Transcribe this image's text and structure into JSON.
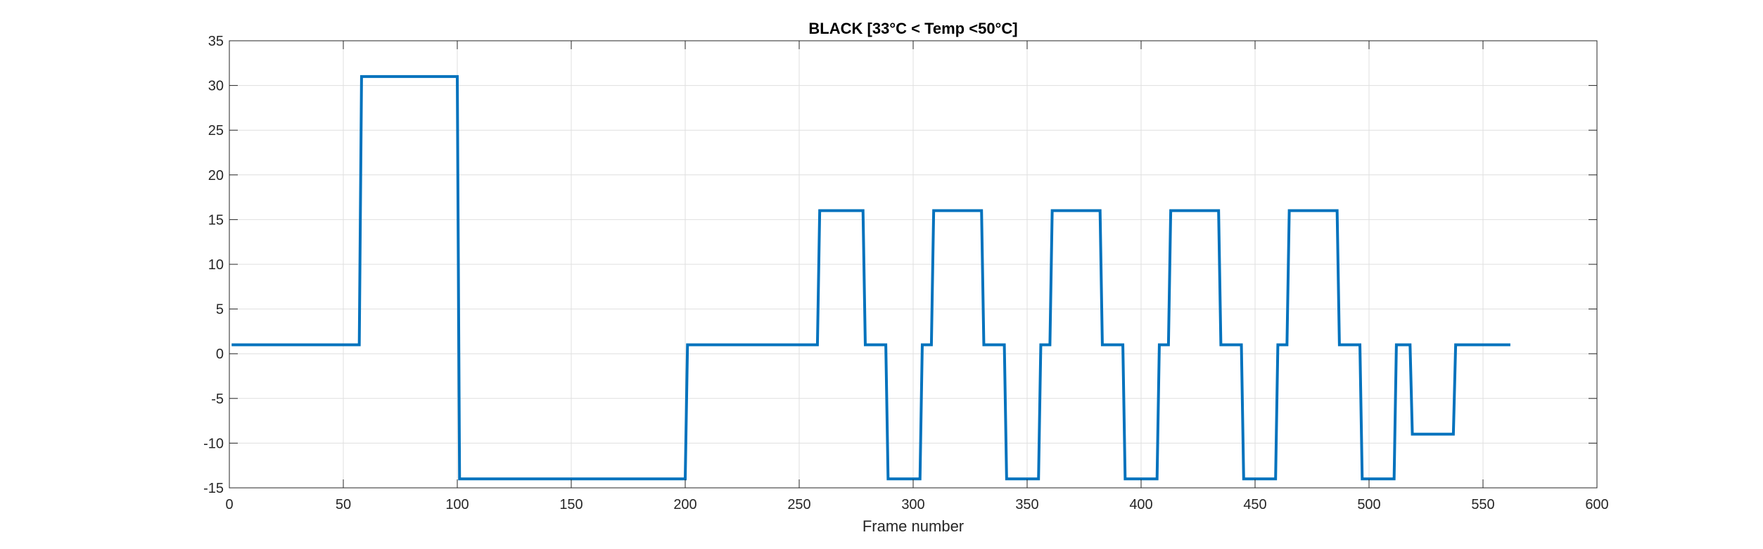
{
  "chart_data": {
    "type": "line",
    "title": "BLACK [33°C < Temp <50°C]",
    "xlabel": "Frame number",
    "ylabel": "",
    "xlim": [
      0,
      600
    ],
    "ylim": [
      -15,
      35
    ],
    "xticks": [
      0,
      50,
      100,
      150,
      200,
      250,
      300,
      350,
      400,
      450,
      500,
      550,
      600
    ],
    "yticks": [
      -15,
      -10,
      -5,
      0,
      5,
      10,
      15,
      20,
      25,
      30,
      35
    ],
    "grid": true,
    "line_color": "#0072BD",
    "series": [
      {
        "x": [
          1,
          57,
          58,
          100,
          101,
          200,
          201,
          258,
          259,
          278,
          279,
          288,
          289,
          303,
          304,
          308,
          309,
          330,
          331,
          340,
          341,
          355,
          356,
          360,
          361,
          382,
          383,
          392,
          393,
          407,
          408,
          412,
          413,
          434,
          435,
          444,
          445,
          459,
          460,
          464,
          465,
          486,
          487,
          496,
          497,
          511,
          512,
          518,
          519,
          537,
          538,
          562
        ],
        "y": [
          1,
          1,
          31,
          31,
          -14,
          -14,
          1,
          1,
          16,
          16,
          1,
          1,
          -14,
          -14,
          1,
          1,
          16,
          16,
          1,
          1,
          -14,
          -14,
          1,
          1,
          16,
          16,
          1,
          1,
          -14,
          -14,
          1,
          1,
          16,
          16,
          1,
          1,
          -14,
          -14,
          1,
          1,
          16,
          16,
          1,
          1,
          -14,
          -14,
          1,
          1,
          -9,
          -9,
          1,
          1
        ]
      }
    ]
  }
}
